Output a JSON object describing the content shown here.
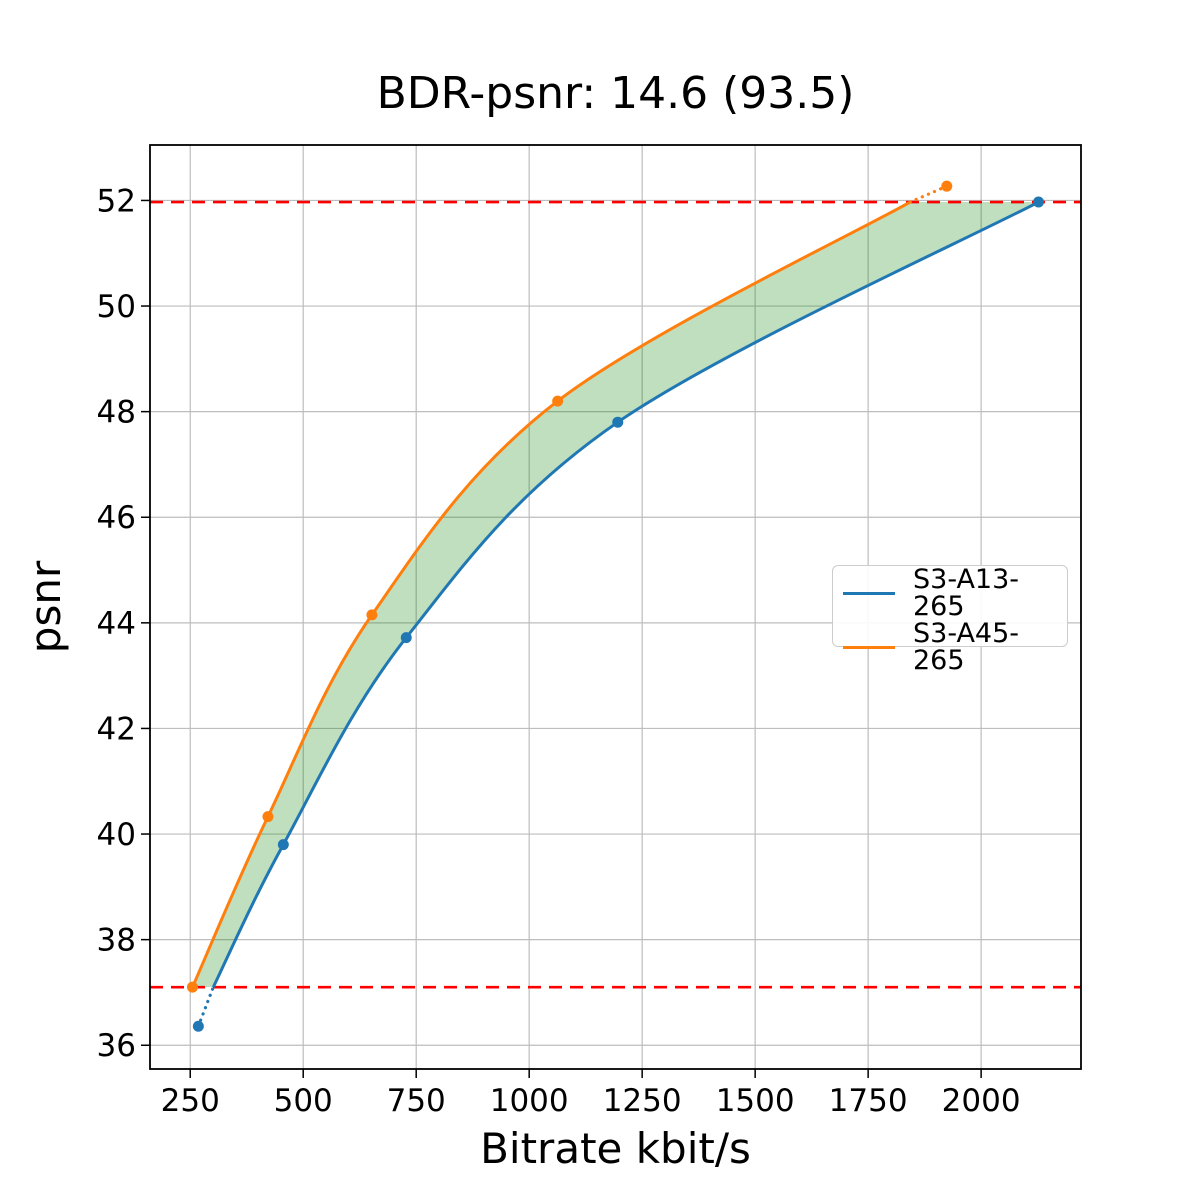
{
  "chart_data": {
    "type": "line",
    "title": "BDR-psnr: 14.6 (93.5)",
    "xlabel": "Bitrate kbit/s",
    "ylabel": "psnr",
    "xlim": [
      161,
      2221
    ],
    "ylim": [
      35.55,
      53.05
    ],
    "x_ticks": [
      250,
      500,
      750,
      1000,
      1250,
      1500,
      1750,
      2000
    ],
    "y_ticks": [
      36,
      38,
      40,
      42,
      44,
      46,
      48,
      50,
      52
    ],
    "grid": true,
    "grid_color": "#bdbdbd",
    "hlines": {
      "values": [
        37.1,
        51.97
      ],
      "color": "#ff0000",
      "style": "dashed"
    },
    "shaded_region": {
      "color": "#008000",
      "opacity": 0.25,
      "description": "area between the two curves clipped between the two red dashed lines"
    },
    "series": [
      {
        "name": "S3-A13-265",
        "color": "#1f77b4",
        "points": [
          [
            268,
            36.36
          ],
          [
            456,
            39.8
          ],
          [
            728,
            43.72
          ],
          [
            1196,
            47.8
          ],
          [
            2127,
            51.97
          ]
        ],
        "solid": [
          [
            301,
            37.1
          ],
          [
            456,
            39.8
          ],
          [
            728,
            43.72
          ],
          [
            1196,
            47.8
          ],
          [
            2127,
            51.97
          ]
        ],
        "dotted": [
          [
            268,
            36.36
          ],
          [
            301,
            37.1
          ]
        ]
      },
      {
        "name": "S3-A45-265",
        "color": "#ff7f0e",
        "points": [
          [
            255,
            37.1
          ],
          [
            422,
            40.33
          ],
          [
            652,
            44.15
          ],
          [
            1063,
            48.2
          ],
          [
            1924,
            52.27
          ]
        ],
        "solid": [
          [
            255,
            37.1
          ],
          [
            422,
            40.33
          ],
          [
            652,
            44.15
          ],
          [
            1063,
            48.2
          ],
          [
            1843,
            51.97
          ]
        ],
        "dotted": [
          [
            1843,
            51.97
          ],
          [
            1924,
            52.27
          ]
        ]
      }
    ],
    "legend_position": "center right"
  },
  "legend": {
    "entries": [
      {
        "label": "S3-A13-265",
        "color": "#1f77b4"
      },
      {
        "label": "S3-A45-265",
        "color": "#ff7f0e"
      }
    ]
  }
}
